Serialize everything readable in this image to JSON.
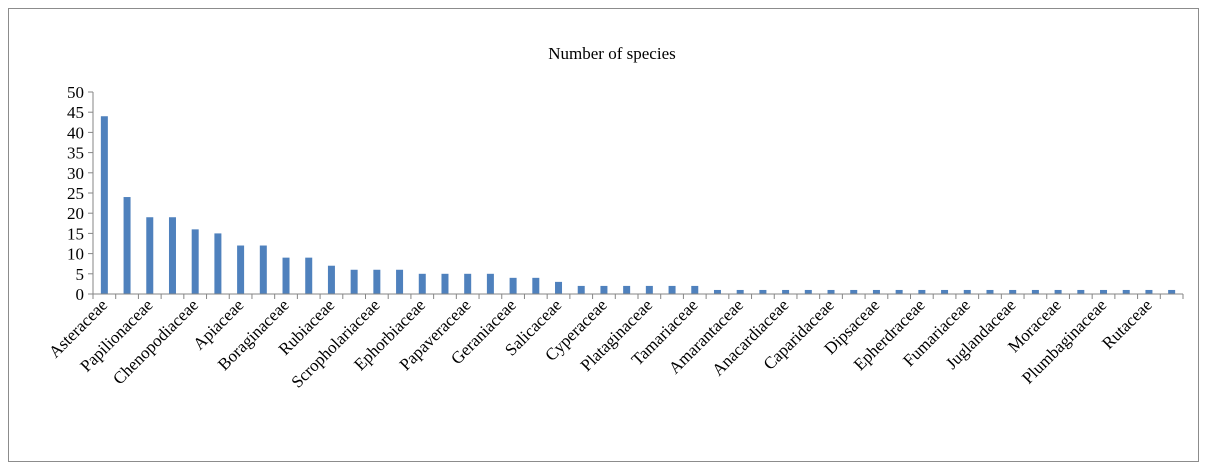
{
  "chart_data": {
    "type": "bar",
    "title": "Number of species",
    "xlabel": "",
    "ylabel": "",
    "ylim": [
      0,
      50
    ],
    "yticks": [
      0,
      5,
      10,
      15,
      20,
      25,
      30,
      35,
      40,
      45,
      50
    ],
    "grid": false,
    "bar_color": "#4f81bd",
    "categories": [
      "Asteraceae",
      "",
      "Papilionaceae",
      "",
      "Chenopodiaceae",
      "",
      "Apiaceae",
      "",
      "Boraginaceae",
      "",
      "Rubiaceae",
      "",
      "Scropholariaceae",
      "",
      "Ephorbiaceae",
      "",
      "Papaveraceae",
      "",
      "Geraniaceae",
      "",
      "Salicaceae",
      "",
      "Cyperaceae",
      "",
      "Plataginaceae",
      "",
      "Tamariaceae",
      "",
      "Amarantaceae",
      "",
      "Anacardiaceae",
      "",
      "Caparidaceae",
      "",
      "Dipsaceae",
      "",
      "Epherdraceae",
      "",
      "Fumariaceae",
      "",
      "Juglandaceae",
      "",
      "Moraceae",
      "",
      "Plumbaginaceae",
      "",
      "Rutaceae",
      ""
    ],
    "values": [
      44,
      24,
      19,
      19,
      16,
      15,
      12,
      12,
      9,
      9,
      7,
      6,
      6,
      6,
      5,
      5,
      5,
      5,
      4,
      4,
      3,
      2,
      2,
      2,
      2,
      2,
      2,
      1,
      1,
      1,
      1,
      1,
      1,
      1,
      1,
      1,
      1,
      1,
      1,
      1,
      1,
      1,
      1,
      1,
      1,
      1,
      1,
      1
    ]
  }
}
